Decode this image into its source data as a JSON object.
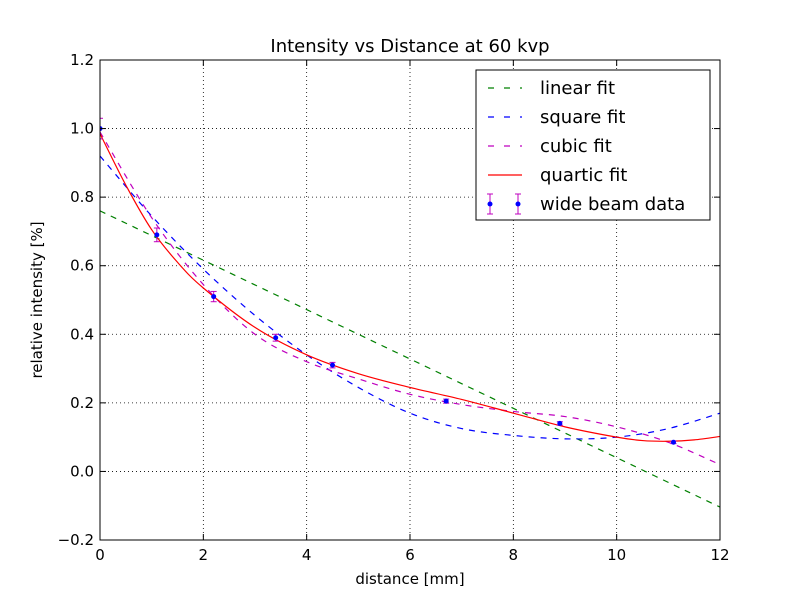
{
  "chart_data": {
    "type": "line",
    "title": "Intensity vs Distance at 60 kvp",
    "xlabel": "distance [mm]",
    "ylabel": "relative intensity [%]",
    "xlim": [
      0,
      12
    ],
    "ylim": [
      -0.2,
      1.2
    ],
    "xticks": [
      0,
      2,
      4,
      6,
      8,
      10,
      12
    ],
    "xtick_labels": [
      "0",
      "2",
      "4",
      "6",
      "8",
      "10",
      "12"
    ],
    "yticks": [
      -0.2,
      0.0,
      0.2,
      0.4,
      0.6,
      0.8,
      1.0,
      1.2
    ],
    "ytick_labels": [
      "−0.2",
      "0.0",
      "0.2",
      "0.4",
      "0.6",
      "0.8",
      "1.0",
      "1.2"
    ],
    "grid": true,
    "legend_position": "top-right",
    "series": [
      {
        "name": "linear fit",
        "style": "dashed",
        "color": "#008000",
        "x": [
          0,
          2,
          4,
          6,
          8,
          10,
          12
        ],
        "y": [
          0.76,
          0.616,
          0.472,
          0.328,
          0.184,
          0.04,
          -0.104
        ]
      },
      {
        "name": "square fit",
        "style": "dashed",
        "color": "#0000ff",
        "x": [
          0,
          1,
          2,
          3,
          4,
          5,
          6,
          7,
          8,
          9,
          10,
          11,
          12
        ],
        "y": [
          0.92,
          0.745,
          0.59,
          0.455,
          0.34,
          0.245,
          0.17,
          0.125,
          0.105,
          0.095,
          0.1,
          0.125,
          0.17
        ]
      },
      {
        "name": "cubic fit",
        "style": "dashed",
        "color": "#bf00bf",
        "x": [
          0,
          1,
          2,
          3,
          4,
          5,
          6,
          7,
          8,
          9,
          10,
          11,
          12
        ],
        "y": [
          0.99,
          0.74,
          0.545,
          0.4,
          0.32,
          0.27,
          0.225,
          0.195,
          0.175,
          0.16,
          0.13,
          0.085,
          0.02
        ]
      },
      {
        "name": "quartic fit",
        "style": "solid",
        "color": "#ff0000",
        "x": [
          0,
          0.5,
          1,
          1.5,
          2,
          3,
          4,
          5,
          6,
          7,
          8,
          9,
          10,
          10.5,
          11,
          11.5,
          12
        ],
        "y": [
          0.985,
          0.835,
          0.705,
          0.61,
          0.535,
          0.42,
          0.34,
          0.285,
          0.245,
          0.21,
          0.17,
          0.13,
          0.1,
          0.09,
          0.088,
          0.092,
          0.102
        ]
      },
      {
        "name": "wide beam data",
        "style": "errorbar",
        "color": "#0000ff",
        "errcolor": "#bf00bf",
        "x": [
          0,
          1.1,
          2.2,
          3.4,
          4.5,
          6.7,
          8.9,
          11.1
        ],
        "y": [
          1.0,
          0.69,
          0.51,
          0.39,
          0.31,
          0.205,
          0.14,
          0.085
        ],
        "yerr": [
          0.03,
          0.02,
          0.015,
          0.01,
          0.008,
          0.006,
          0.005,
          0.004
        ]
      }
    ]
  }
}
